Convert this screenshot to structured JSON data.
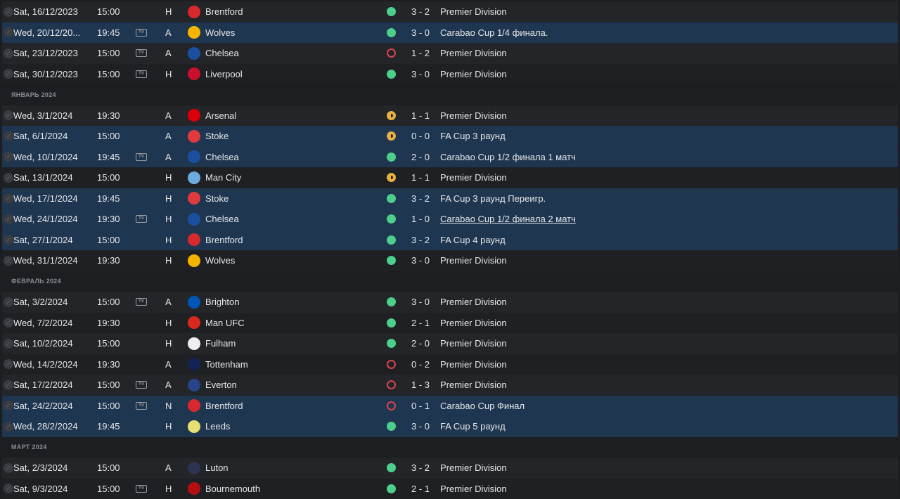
{
  "colors": {
    "win": "#4ccf8a",
    "loss": "#d6454f",
    "draw": "#e8b040",
    "highlight": "#1f3650"
  },
  "tv_label": "TV",
  "items": [
    {
      "date": "Sat, 16/12/2023",
      "time": "15:00",
      "tv": false,
      "venue": "H",
      "opponent": "Brentford",
      "crest": "#d8282f",
      "result": "W",
      "score": "3 - 2",
      "competition": "Premier Division",
      "hl": false
    },
    {
      "date": "Wed, 20/12/20...",
      "time": "19:45",
      "tv": true,
      "venue": "A",
      "opponent": "Wolves",
      "crest": "#f5b400",
      "result": "W",
      "score": "3 - 0",
      "competition": "Carabao Cup 1/4 финала.",
      "hl": true
    },
    {
      "date": "Sat, 23/12/2023",
      "time": "15:00",
      "tv": true,
      "venue": "A",
      "opponent": "Chelsea",
      "crest": "#1a4fa0",
      "result": "L",
      "score": "1 - 2",
      "competition": "Premier Division",
      "hl": false
    },
    {
      "date": "Sat, 30/12/2023",
      "time": "15:00",
      "tv": true,
      "venue": "H",
      "opponent": "Liverpool",
      "crest": "#c8102e",
      "result": "W",
      "score": "3 - 0",
      "competition": "Premier Division",
      "hl": false
    },
    {
      "section": "ЯНВАРЬ 2024"
    },
    {
      "date": "Wed, 3/1/2024",
      "time": "19:30",
      "tv": false,
      "venue": "A",
      "opponent": "Arsenal",
      "crest": "#db0007",
      "result": "D",
      "score": "1 - 1",
      "competition": "Premier Division",
      "hl": false
    },
    {
      "date": "Sat, 6/1/2024",
      "time": "15:00",
      "tv": false,
      "venue": "A",
      "opponent": "Stoke",
      "crest": "#e03a3e",
      "result": "D",
      "score": "0 - 0",
      "competition": "FA Cup 3 раунд",
      "hl": true
    },
    {
      "date": "Wed, 10/1/2024",
      "time": "19:45",
      "tv": true,
      "venue": "A",
      "opponent": "Chelsea",
      "crest": "#1a4fa0",
      "result": "W",
      "score": "2 - 0",
      "competition": "Carabao Cup 1/2 финала 1 матч",
      "hl": true
    },
    {
      "date": "Sat, 13/1/2024",
      "time": "15:00",
      "tv": false,
      "venue": "H",
      "opponent": "Man City",
      "crest": "#6cabdd",
      "result": "D",
      "score": "1 - 1",
      "competition": "Premier Division",
      "hl": false
    },
    {
      "date": "Wed, 17/1/2024",
      "time": "19:45",
      "tv": false,
      "venue": "H",
      "opponent": "Stoke",
      "crest": "#e03a3e",
      "result": "W",
      "score": "3 - 2",
      "competition": "FA Cup 3 раунд Переигр.",
      "hl": true
    },
    {
      "date": "Wed, 24/1/2024",
      "time": "19:30",
      "tv": true,
      "venue": "H",
      "opponent": "Chelsea",
      "crest": "#1a4fa0",
      "result": "W",
      "score": "1 - 0",
      "competition": "Carabao Cup 1/2 финала 2 матч",
      "hl": true,
      "underline": true
    },
    {
      "date": "Sat, 27/1/2024",
      "time": "15:00",
      "tv": false,
      "venue": "H",
      "opponent": "Brentford",
      "crest": "#d8282f",
      "result": "W",
      "score": "3 - 2",
      "competition": "FA Cup 4 раунд",
      "hl": true
    },
    {
      "date": "Wed, 31/1/2024",
      "time": "19:30",
      "tv": false,
      "venue": "H",
      "opponent": "Wolves",
      "crest": "#f5b400",
      "result": "W",
      "score": "3 - 0",
      "competition": "Premier Division",
      "hl": false
    },
    {
      "section": "ФЕВРАЛЬ 2024"
    },
    {
      "date": "Sat, 3/2/2024",
      "time": "15:00",
      "tv": true,
      "venue": "A",
      "opponent": "Brighton",
      "crest": "#0057b8",
      "result": "W",
      "score": "3 - 0",
      "competition": "Premier Division",
      "hl": false
    },
    {
      "date": "Wed, 7/2/2024",
      "time": "19:30",
      "tv": false,
      "venue": "H",
      "opponent": "Man UFC",
      "crest": "#da291c",
      "result": "W",
      "score": "2 - 1",
      "competition": "Premier Division",
      "hl": false
    },
    {
      "date": "Sat, 10/2/2024",
      "time": "15:00",
      "tv": false,
      "venue": "H",
      "opponent": "Fulham",
      "crest": "#eeeeee",
      "result": "W",
      "score": "2 - 0",
      "competition": "Premier Division",
      "hl": false
    },
    {
      "date": "Wed, 14/2/2024",
      "time": "19:30",
      "tv": false,
      "venue": "A",
      "opponent": "Tottenham",
      "crest": "#132257",
      "result": "L",
      "score": "0 - 2",
      "competition": "Premier Division",
      "hl": false
    },
    {
      "date": "Sat, 17/2/2024",
      "time": "15:00",
      "tv": true,
      "venue": "A",
      "opponent": "Everton",
      "crest": "#274488",
      "result": "L",
      "score": "1 - 3",
      "competition": "Premier Division",
      "hl": false
    },
    {
      "date": "Sat, 24/2/2024",
      "time": "15:00",
      "tv": true,
      "venue": "N",
      "opponent": "Brentford",
      "crest": "#d8282f",
      "result": "L",
      "score": "0 - 1",
      "competition": "Carabao Cup Финал",
      "hl": true
    },
    {
      "date": "Wed, 28/2/2024",
      "time": "19:45",
      "tv": false,
      "venue": "H",
      "opponent": "Leeds",
      "crest": "#e8e070",
      "result": "W",
      "score": "3 - 0",
      "competition": "FA Cup 5 раунд",
      "hl": true
    },
    {
      "section": "МАРТ 2024"
    },
    {
      "date": "Sat, 2/3/2024",
      "time": "15:00",
      "tv": false,
      "venue": "A",
      "opponent": "Luton",
      "crest": "#2b3350",
      "result": "W",
      "score": "3 - 2",
      "competition": "Premier Division",
      "hl": false
    },
    {
      "date": "Sat, 9/3/2024",
      "time": "15:00",
      "tv": true,
      "venue": "H",
      "opponent": "Bournemouth",
      "crest": "#b50e12",
      "result": "W",
      "score": "2 - 1",
      "competition": "Premier Division",
      "hl": false
    }
  ]
}
